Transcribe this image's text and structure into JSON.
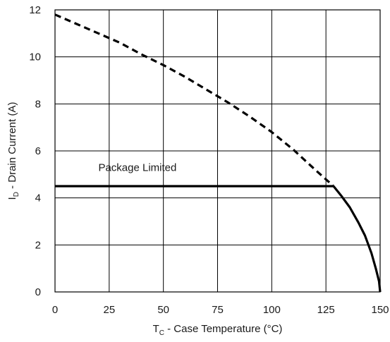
{
  "chart_data": {
    "type": "line",
    "xlabel": {
      "main": "T",
      "sub": "C",
      "rest": " - Case Temperature (°C)"
    },
    "ylabel": {
      "main": "I",
      "sub": "D",
      "rest": " - Drain Current (A)"
    },
    "xlim": [
      0,
      150
    ],
    "ylim": [
      0,
      12
    ],
    "xticks": [
      0,
      25,
      50,
      75,
      100,
      125,
      150
    ],
    "yticks": [
      0,
      2,
      4,
      6,
      8,
      10,
      12
    ],
    "grid": true,
    "series": [
      {
        "style": "dashed",
        "color": "#000000",
        "x": [
          0,
          10,
          20,
          30,
          40,
          50,
          60,
          70,
          80,
          90,
          100,
          110,
          120,
          128.5
        ],
        "y": [
          11.8,
          11.4,
          11.0,
          10.6,
          10.1,
          9.65,
          9.15,
          8.6,
          8.05,
          7.45,
          6.8,
          6.05,
          5.2,
          4.5
        ]
      },
      {
        "style": "solid",
        "color": "#000000",
        "x": [
          0,
          128.5
        ],
        "y": [
          4.5,
          4.5
        ]
      },
      {
        "style": "solid",
        "color": "#000000",
        "x": [
          128.5,
          132,
          136,
          140,
          143,
          146,
          148,
          149.5,
          150
        ],
        "y": [
          4.5,
          4.1,
          3.6,
          2.95,
          2.4,
          1.65,
          1.0,
          0.45,
          0
        ]
      }
    ],
    "annotations": [
      {
        "text": "Package Limited",
        "x": 20,
        "y": 5.15
      }
    ]
  }
}
